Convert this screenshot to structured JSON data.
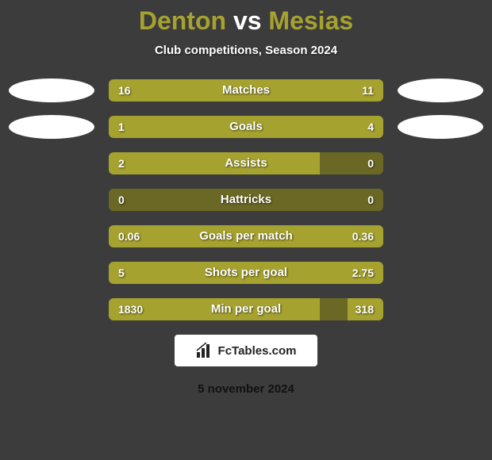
{
  "title_parts": {
    "left": "Denton",
    "vs": "vs",
    "right": "Mesias"
  },
  "title_color_left": "#a6a22f",
  "title_color_vs": "#ffffff",
  "title_color_right": "#a6a22f",
  "subtitle": "Club competitions, Season 2024",
  "bg_color": "#3c3c3c",
  "bar_bg_color": "#6a6824",
  "bar_left_color": "#a6a22f",
  "bar_right_color": "#a6a22f",
  "bar_track_width": 346,
  "badge_bg": "#ffffff",
  "rows": [
    {
      "label": "Matches",
      "left_val": "16",
      "right_val": "11",
      "left_pct": 59,
      "right_pct": 41,
      "show_badges": true
    },
    {
      "label": "Goals",
      "left_val": "1",
      "right_val": "4",
      "left_pct": 20,
      "right_pct": 80,
      "show_badges": true
    },
    {
      "label": "Assists",
      "left_val": "2",
      "right_val": "0",
      "left_pct": 77,
      "right_pct": 0,
      "show_badges": false
    },
    {
      "label": "Hattricks",
      "left_val": "0",
      "right_val": "0",
      "left_pct": 0,
      "right_pct": 0,
      "show_badges": false
    },
    {
      "label": "Goals per match",
      "left_val": "0.06",
      "right_val": "0.36",
      "left_pct": 14,
      "right_pct": 86,
      "show_badges": false
    },
    {
      "label": "Shots per goal",
      "left_val": "5",
      "right_val": "2.75",
      "left_pct": 65,
      "right_pct": 35,
      "show_badges": false
    },
    {
      "label": "Min per goal",
      "left_val": "1830",
      "right_val": "318",
      "left_pct": 77,
      "right_pct": 13,
      "show_badges": false
    }
  ],
  "footer_brand": "FcTables.com",
  "footer_date": "5 november 2024"
}
